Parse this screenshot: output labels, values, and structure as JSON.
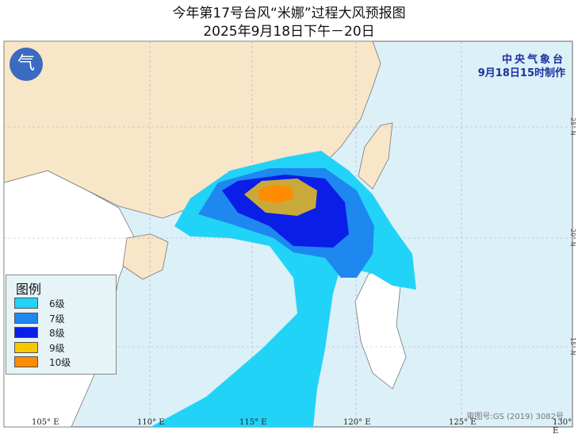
{
  "title": "今年第17号台风“米娜”过程大风预报图",
  "subtitle": "2025年9月18日下午－20日",
  "agency": "中央气象台",
  "issued": "9月18日15时制作",
  "logo_icon": "cma-logo",
  "legend": {
    "title": "图例",
    "items": [
      {
        "label": "6级",
        "color": "#22d3f8"
      },
      {
        "label": "7级",
        "color": "#1e88f0"
      },
      {
        "label": "8级",
        "color": "#0a1ee8"
      },
      {
        "label": "9级",
        "color": "#f5c800"
      },
      {
        "label": "10级",
        "color": "#ff8c00"
      }
    ]
  },
  "lon_labels": [
    "105° E",
    "110° E",
    "115° E",
    "120° E",
    "125° E",
    "130° E"
  ],
  "lat_labels": [
    "25° N",
    "20° N",
    "15° N"
  ],
  "review_number": "审图号:GS (2019) 3082号",
  "colors": {
    "sea": "#dcf0f8",
    "land": "#f8e6c8",
    "other_land": "#ffffff"
  }
}
